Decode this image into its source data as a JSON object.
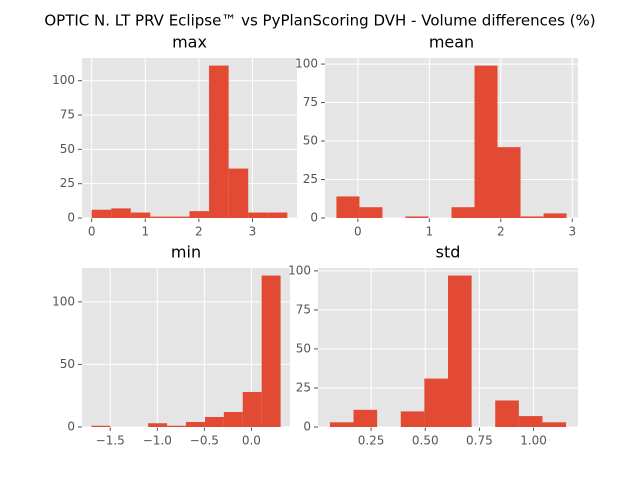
{
  "title": "OPTIC N. LT PRV Eclipse™ vs PyPlanScoring DVH - Volume differences (%)",
  "chart_data": [
    {
      "type": "histogram",
      "title": "max",
      "color": "#e24a33",
      "grid": true,
      "bins": [
        0,
        0.365,
        0.73,
        1.095,
        1.46,
        1.825,
        2.19,
        2.555,
        2.92,
        3.285,
        3.65
      ],
      "values": [
        6,
        7,
        4,
        1,
        1,
        5,
        111,
        36,
        4,
        4
      ],
      "xlim": [
        -0.18,
        3.83
      ],
      "xticks": [
        0,
        1,
        2,
        3
      ],
      "ylim": [
        0,
        116.55
      ],
      "yticks": [
        0,
        25,
        50,
        75,
        100
      ]
    },
    {
      "type": "histogram",
      "title": "mean",
      "color": "#e24a33",
      "grid": true,
      "bins": [
        -0.3,
        0.022,
        0.344,
        0.666,
        0.988,
        1.31,
        1.632,
        1.954,
        2.276,
        2.598,
        2.92
      ],
      "values": [
        14,
        7,
        0,
        1,
        0,
        7,
        99,
        46,
        1,
        3
      ],
      "xlim": [
        -0.46,
        3.08
      ],
      "xticks": [
        0,
        1,
        2,
        3
      ],
      "ylim": [
        0,
        103.95
      ],
      "yticks": [
        0,
        25,
        50,
        75,
        100
      ]
    },
    {
      "type": "histogram",
      "title": "min",
      "color": "#e24a33",
      "grid": true,
      "bins": [
        -1.7,
        -1.499,
        -1.298,
        -1.097,
        -0.896,
        -0.695,
        -0.494,
        -0.293,
        -0.092,
        0.109,
        0.31
      ],
      "values": [
        1,
        0,
        0,
        3,
        1,
        4,
        8,
        12,
        28,
        121
      ],
      "xlim": [
        -1.8,
        0.41
      ],
      "xticks": [
        {
          "value": -1.5,
          "label": "−1.5"
        },
        {
          "value": -1.0,
          "label": "−1.0"
        },
        {
          "value": -0.5,
          "label": "−0.5"
        },
        {
          "value": 0,
          "label": "0.0"
        }
      ],
      "ylim": [
        0,
        127.05
      ],
      "yticks": [
        0,
        50,
        100
      ]
    },
    {
      "type": "histogram",
      "title": "std",
      "color": "#e24a33",
      "grid": true,
      "bins": [
        0.06,
        0.169,
        0.278,
        0.387,
        0.496,
        0.605,
        0.714,
        0.823,
        0.932,
        1.041,
        1.15
      ],
      "values": [
        3,
        11,
        0,
        10,
        31,
        97,
        0,
        17,
        7,
        3
      ],
      "xlim": [
        0.005,
        1.205
      ],
      "xticks": [
        0.25,
        {
          "value": 0.5,
          "label": "0.50"
        },
        0.75,
        {
          "value": 1.0,
          "label": "1.00"
        }
      ],
      "ylim": [
        0,
        101.85
      ],
      "yticks": [
        0,
        25,
        50,
        75,
        100
      ]
    }
  ]
}
